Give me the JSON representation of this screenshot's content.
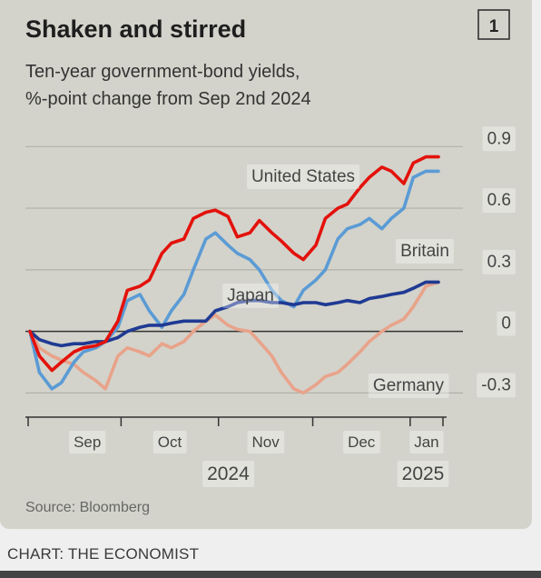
{
  "chart_data": {
    "type": "line",
    "title": "Shaken and stirred",
    "chart_number": "1",
    "subtitle_line1": "Ten-year government-bond yields,",
    "subtitle_line2": "%-point change from Sep 2nd 2024",
    "source": "Source: Bloomberg",
    "x_start": "2024-09-02",
    "x_end": "2025-01-10",
    "month_ticks": [
      "Sep",
      "Oct",
      "Nov",
      "Dec",
      "Jan"
    ],
    "year_labels": [
      "2024",
      "2025"
    ],
    "y_ticks": [
      "0.9",
      "0.6",
      "0.3",
      "0",
      "-0.3"
    ],
    "ylim": [
      -0.4,
      0.95
    ],
    "grid": true,
    "colors": {
      "United States": "#e3120b",
      "Britain": "#5b9bd5",
      "Japan": "#1f3a93",
      "Germany": "#e8a38a"
    },
    "series": [
      {
        "name": "United States",
        "x": [
          "2024-09-02",
          "2024-09-05",
          "2024-09-09",
          "2024-09-12",
          "2024-09-16",
          "2024-09-19",
          "2024-09-23",
          "2024-09-26",
          "2024-09-30",
          "2024-10-03",
          "2024-10-07",
          "2024-10-10",
          "2024-10-14",
          "2024-10-17",
          "2024-10-21",
          "2024-10-24",
          "2024-10-28",
          "2024-10-31",
          "2024-11-04",
          "2024-11-07",
          "2024-11-11",
          "2024-11-14",
          "2024-11-18",
          "2024-11-21",
          "2024-11-25",
          "2024-11-28",
          "2024-12-02",
          "2024-12-05",
          "2024-12-09",
          "2024-12-12",
          "2024-12-16",
          "2024-12-19",
          "2024-12-23",
          "2024-12-26",
          "2024-12-30",
          "2025-01-02",
          "2025-01-06",
          "2025-01-10"
        ],
        "values": [
          0,
          -0.12,
          -0.19,
          -0.15,
          -0.1,
          -0.08,
          -0.07,
          -0.05,
          0.05,
          0.2,
          0.22,
          0.25,
          0.38,
          0.43,
          0.45,
          0.55,
          0.58,
          0.59,
          0.56,
          0.46,
          0.48,
          0.54,
          0.48,
          0.44,
          0.38,
          0.35,
          0.42,
          0.55,
          0.6,
          0.62,
          0.7,
          0.75,
          0.8,
          0.78,
          0.72,
          0.82,
          0.85,
          0.85
        ]
      },
      {
        "name": "Britain",
        "x": [
          "2024-09-02",
          "2024-09-05",
          "2024-09-09",
          "2024-09-12",
          "2024-09-16",
          "2024-09-19",
          "2024-09-23",
          "2024-09-26",
          "2024-09-30",
          "2024-10-03",
          "2024-10-07",
          "2024-10-10",
          "2024-10-14",
          "2024-10-17",
          "2024-10-21",
          "2024-10-24",
          "2024-10-28",
          "2024-10-31",
          "2024-11-04",
          "2024-11-07",
          "2024-11-11",
          "2024-11-14",
          "2024-11-18",
          "2024-11-21",
          "2024-11-25",
          "2024-11-28",
          "2024-12-02",
          "2024-12-05",
          "2024-12-09",
          "2024-12-12",
          "2024-12-16",
          "2024-12-19",
          "2024-12-23",
          "2024-12-26",
          "2024-12-30",
          "2025-01-02",
          "2025-01-06",
          "2025-01-10"
        ],
        "values": [
          0,
          -0.2,
          -0.28,
          -0.25,
          -0.15,
          -0.1,
          -0.08,
          -0.05,
          0.02,
          0.15,
          0.18,
          0.1,
          0.02,
          0.1,
          0.18,
          0.3,
          0.45,
          0.48,
          0.42,
          0.38,
          0.35,
          0.3,
          0.2,
          0.15,
          0.12,
          0.2,
          0.25,
          0.3,
          0.45,
          0.5,
          0.52,
          0.55,
          0.5,
          0.55,
          0.6,
          0.75,
          0.78,
          0.78
        ]
      },
      {
        "name": "Japan",
        "x": [
          "2024-09-02",
          "2024-09-05",
          "2024-09-09",
          "2024-09-12",
          "2024-09-16",
          "2024-09-19",
          "2024-09-23",
          "2024-09-26",
          "2024-09-30",
          "2024-10-03",
          "2024-10-07",
          "2024-10-10",
          "2024-10-14",
          "2024-10-17",
          "2024-10-21",
          "2024-10-24",
          "2024-10-28",
          "2024-10-31",
          "2024-11-04",
          "2024-11-07",
          "2024-11-11",
          "2024-11-14",
          "2024-11-18",
          "2024-11-21",
          "2024-11-25",
          "2024-11-28",
          "2024-12-02",
          "2024-12-05",
          "2024-12-09",
          "2024-12-12",
          "2024-12-16",
          "2024-12-19",
          "2024-12-23",
          "2024-12-26",
          "2024-12-30",
          "2025-01-02",
          "2025-01-06",
          "2025-01-10"
        ],
        "values": [
          0,
          -0.04,
          -0.06,
          -0.07,
          -0.06,
          -0.06,
          -0.05,
          -0.05,
          -0.03,
          0.0,
          0.02,
          0.03,
          0.03,
          0.04,
          0.05,
          0.05,
          0.05,
          0.1,
          0.12,
          0.14,
          0.15,
          0.15,
          0.14,
          0.14,
          0.13,
          0.14,
          0.14,
          0.13,
          0.14,
          0.15,
          0.14,
          0.16,
          0.17,
          0.18,
          0.19,
          0.21,
          0.24,
          0.24
        ]
      },
      {
        "name": "Germany",
        "x": [
          "2024-09-02",
          "2024-09-05",
          "2024-09-09",
          "2024-09-12",
          "2024-09-16",
          "2024-09-19",
          "2024-09-23",
          "2024-09-26",
          "2024-09-30",
          "2024-10-03",
          "2024-10-07",
          "2024-10-10",
          "2024-10-14",
          "2024-10-17",
          "2024-10-21",
          "2024-10-24",
          "2024-10-28",
          "2024-10-31",
          "2024-11-04",
          "2024-11-07",
          "2024-11-11",
          "2024-11-14",
          "2024-11-18",
          "2024-11-21",
          "2024-11-25",
          "2024-11-28",
          "2024-12-02",
          "2024-12-05",
          "2024-12-09",
          "2024-12-12",
          "2024-12-16",
          "2024-12-19",
          "2024-12-23",
          "2024-12-26",
          "2024-12-30",
          "2025-01-02",
          "2025-01-06",
          "2025-01-10"
        ],
        "values": [
          0,
          -0.08,
          -0.12,
          -0.14,
          -0.16,
          -0.2,
          -0.24,
          -0.28,
          -0.12,
          -0.08,
          -0.1,
          -0.12,
          -0.06,
          -0.08,
          -0.05,
          0.0,
          0.05,
          0.08,
          0.03,
          0.01,
          0.0,
          -0.05,
          -0.12,
          -0.2,
          -0.28,
          -0.3,
          -0.26,
          -0.22,
          -0.2,
          -0.16,
          -0.1,
          -0.05,
          0.0,
          0.03,
          0.06,
          0.12,
          0.22,
          0.24
        ]
      }
    ]
  },
  "footer": {
    "credit": "CHART: THE ECONOMIST"
  }
}
